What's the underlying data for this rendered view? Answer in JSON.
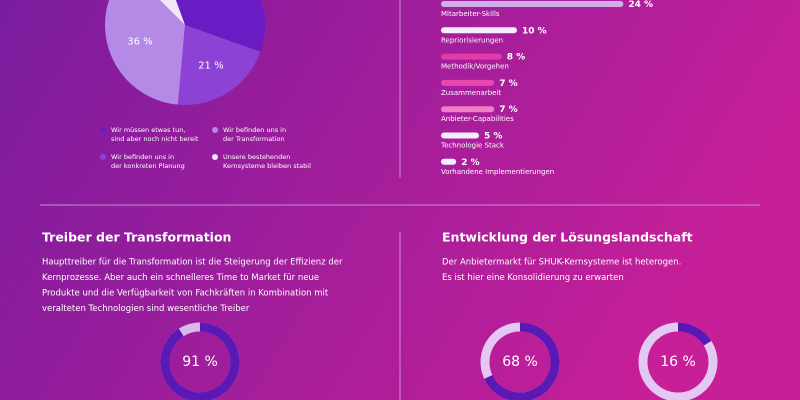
{
  "chart_data": [
    {
      "type": "pie",
      "categories": [
        "Wir müssen etwas tun, sind aber noch nicht bereit",
        "Wir befinden uns in der konkreten Planung",
        "Wir befinden uns in der Transformation",
        "Unsere bestehenden Kernsysteme bleiben stabil"
      ],
      "legend_lines": [
        [
          "Wir müssen etwas tun,",
          "sind aber noch nicht bereit"
        ],
        [
          "Wir befinden uns in",
          "der konkreten Planung"
        ],
        [
          "Wir befinden uns in",
          "der Transformation"
        ],
        [
          "Unsere bestehenden",
          "Kernsysteme bleiben stabil"
        ]
      ],
      "values": [
        36,
        21,
        36,
        7
      ],
      "value_labels": [
        null,
        "21 %",
        "36 %",
        null
      ],
      "colors": [
        "#6a1cc4",
        "#8c42d4",
        "#b48ae6",
        "#f1e6fb"
      ]
    },
    {
      "type": "hbar",
      "categories": [
        "Mitarbeiter-Skills",
        "Repriorisierungen",
        "Methodik/Vorgehen",
        "Zusammenarbeit",
        "Anbieter-Capabilities",
        "Technologie Stack",
        "Vorhandene Implementierungen"
      ],
      "values": [
        24,
        10,
        8,
        7,
        7,
        5,
        2
      ],
      "value_labels": [
        "24 %",
        "10 %",
        "8 %",
        "7 %",
        "7 %",
        "5 %",
        "2 %"
      ],
      "colors": [
        "#cdb0ea",
        "#f6eefc",
        "#e23aa8",
        "#e848ae",
        "#ee7ec6",
        "#f6eefc",
        "#f6eefc"
      ]
    },
    {
      "type": "donut",
      "title": "Treiber der Transformation",
      "text": [
        "Haupttreiber für die Transformation ist die Steigerung der Effizienz der",
        "Kernprozesse. Aber auch ein schnelleres Time to Market für neue",
        "Produkte und die Verfügbarkeit von Fachkräften in Kombination mit",
        "veralteten Technologien sind wesentliche Treiber"
      ],
      "values": [
        91
      ],
      "value_labels": [
        "91 %"
      ],
      "color": "#5a18b4",
      "track_color": "#d9b8ee"
    },
    {
      "type": "donut",
      "title": "Entwicklung der Lösungslandschaft",
      "text": [
        "Der Anbietermarkt für SHUK-Kernsysteme ist heterogen.",
        "Es ist hier eine Konsolidierung zu erwarten"
      ],
      "values": [
        68,
        16
      ],
      "value_labels": [
        "68 %",
        "16 %"
      ],
      "color": "#5a18b4",
      "track_color": "#e3c8f3"
    }
  ]
}
